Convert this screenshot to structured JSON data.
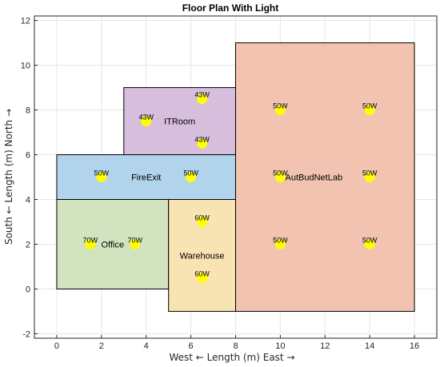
{
  "chart_data": {
    "type": "floor-plan",
    "title": "Floor Plan With Light",
    "xlabel": "West ←   Length (m)   East →",
    "ylabel": "South ←   Length (m)   North →",
    "xlim": [
      -1,
      17
    ],
    "ylim": [
      -2.2,
      12.2
    ],
    "xticks": [
      0,
      2,
      4,
      6,
      8,
      10,
      12,
      14,
      16
    ],
    "yticks": [
      -2,
      0,
      2,
      4,
      6,
      8,
      10,
      12
    ],
    "grid": true,
    "rooms": [
      {
        "name": "AutBudNetLab",
        "x0": 8,
        "x1": 16,
        "y0": -1,
        "y1": 11,
        "color": "#f1c3b0",
        "label_x": 11.5,
        "label_y": 5
      },
      {
        "name": "ITRoom",
        "x0": 3,
        "x1": 8,
        "y0": 6,
        "y1": 9,
        "color": "#d8bedd",
        "label_x": 5.5,
        "label_y": 7.5
      },
      {
        "name": "FireExit",
        "x0": 0,
        "x1": 8,
        "y0": 4,
        "y1": 6,
        "color": "#b2d3ec",
        "label_x": 4,
        "label_y": 5
      },
      {
        "name": "Office",
        "x0": 0,
        "x1": 5,
        "y0": 0,
        "y1": 4,
        "color": "#d2e3c0",
        "label_x": 2.5,
        "label_y": 2
      },
      {
        "name": "Warehouse",
        "x0": 5,
        "x1": 8,
        "y0": -1,
        "y1": 4,
        "color": "#f8e3b2",
        "label_x": 6.5,
        "label_y": 1.5
      }
    ],
    "lights": [
      {
        "x": 6.5,
        "y": 8.5,
        "label": "43W"
      },
      {
        "x": 4,
        "y": 7.5,
        "label": "43W"
      },
      {
        "x": 6.5,
        "y": 6.5,
        "label": "43W"
      },
      {
        "x": 2,
        "y": 5,
        "label": "50W"
      },
      {
        "x": 6,
        "y": 5,
        "label": "50W"
      },
      {
        "x": 10,
        "y": 8,
        "label": "50W"
      },
      {
        "x": 14,
        "y": 8,
        "label": "50W"
      },
      {
        "x": 10,
        "y": 5,
        "label": "50W"
      },
      {
        "x": 14,
        "y": 5,
        "label": "50W"
      },
      {
        "x": 10,
        "y": 2,
        "label": "50W"
      },
      {
        "x": 14,
        "y": 2,
        "label": "50W"
      },
      {
        "x": 1.5,
        "y": 2,
        "label": "70W"
      },
      {
        "x": 3.5,
        "y": 2,
        "label": "70W"
      },
      {
        "x": 6.5,
        "y": 3,
        "label": "60W"
      },
      {
        "x": 6.5,
        "y": 0.5,
        "label": "60W"
      }
    ],
    "light_color": "#ffff00"
  }
}
